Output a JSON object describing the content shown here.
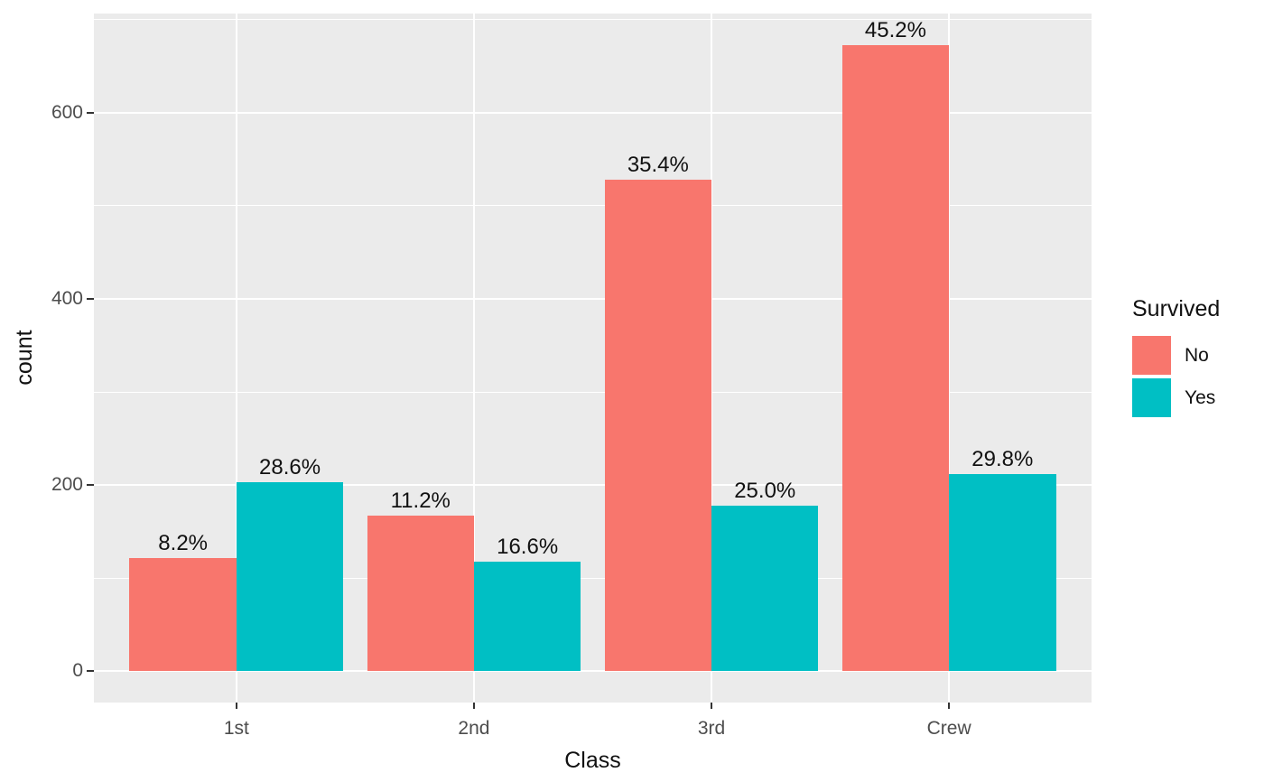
{
  "chart_data": {
    "type": "bar",
    "grouping": "dodge",
    "title": "",
    "xlabel": "Class",
    "ylabel": "count",
    "categories": [
      "1st",
      "2nd",
      "3rd",
      "Crew"
    ],
    "series": [
      {
        "name": "No",
        "color": "#F8766D",
        "values": [
          122,
          167,
          528,
          673
        ],
        "bar_labels": [
          "8.2%",
          "11.2%",
          "35.4%",
          "45.2%"
        ]
      },
      {
        "name": "Yes",
        "color": "#00BFC4",
        "values": [
          203,
          118,
          178,
          212
        ],
        "bar_labels": [
          "28.6%",
          "16.6%",
          "25.0%",
          "29.8%"
        ]
      }
    ],
    "y_axis": {
      "ticks": [
        0,
        200,
        400,
        600
      ],
      "minor_ticks": [
        100,
        300,
        500,
        700
      ],
      "range": [
        -33.65,
        706.65
      ]
    },
    "x_axis": {
      "ticks": [
        "1st",
        "2nd",
        "3rd",
        "Crew"
      ]
    },
    "legend": {
      "title": "Survived",
      "position": "right",
      "entries": [
        "No",
        "Yes"
      ]
    },
    "grid": true,
    "style": {
      "panel_background": "#EBEBEB",
      "grid_color": "#FFFFFF",
      "tick_mark_color": "#333333",
      "tick_label_color": "#4D4D4D",
      "text_color": "#111111",
      "page_background": "#FFFFFF"
    }
  }
}
